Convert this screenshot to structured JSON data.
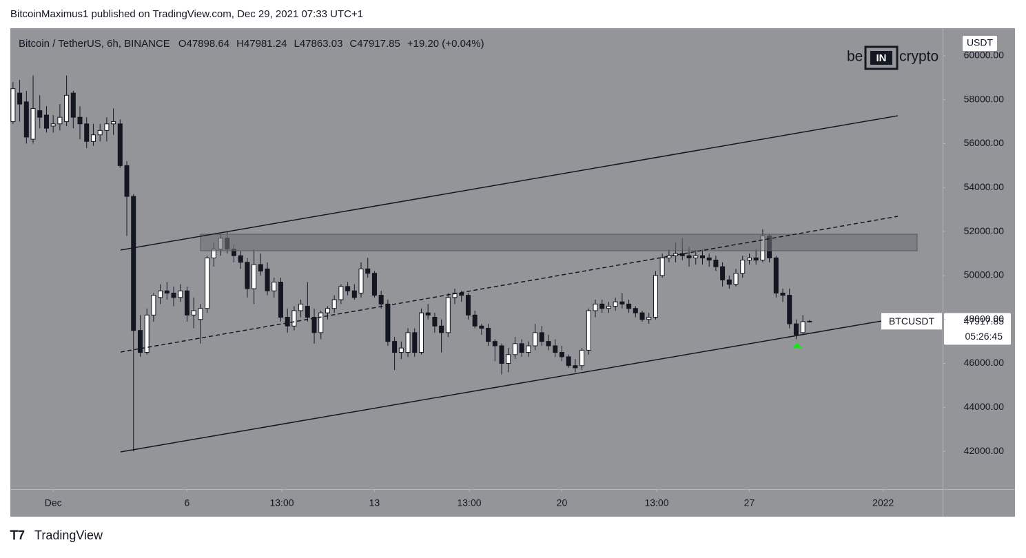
{
  "header": "BitcoinMaximus1 published on TradingView.com, Dec 29, 2021 07:33 UTC+1",
  "footer": "TradingView",
  "logo": {
    "left": "be",
    "middle": "IN",
    "right": "crypto"
  },
  "chart_data": {
    "type": "candlestick",
    "symbol_title": "Bitcoin / TetherUS, 6h, BINANCE",
    "legend_prefixes": [
      "O",
      "H",
      "L",
      "C"
    ],
    "change": "+19.20 (+0.04%)",
    "currency": "USDT",
    "ticker": "BTCUSDT",
    "countdown": "05:26:45",
    "up_color": "#ffffff",
    "down_color": "#131722",
    "wick_color": "#131722",
    "xlim": [
      -0.6,
      34.22
    ],
    "ylim": [
      40280,
      61250
    ],
    "xticks": [
      {
        "value": 1,
        "label": "Dec"
      },
      6,
      {
        "value": 9.54,
        "label": "13:00"
      },
      13,
      {
        "value": 16.54,
        "label": "13:00"
      },
      20,
      {
        "value": 23.54,
        "label": "13:00"
      },
      27,
      {
        "value": 32,
        "label": "2022"
      }
    ],
    "yticks": [
      {
        "value": 42000,
        "label": "42000.00"
      },
      {
        "value": 44000,
        "label": "44000.00"
      },
      {
        "value": 46000,
        "label": "46000.00"
      },
      {
        "value": 48000,
        "label": "48000.00"
      },
      {
        "value": 50000,
        "label": "50000.00"
      },
      {
        "value": 52000,
        "label": "52000.00"
      },
      {
        "value": 54000,
        "label": "54000.00"
      },
      {
        "value": 56000,
        "label": "56000.00"
      },
      {
        "value": 58000,
        "label": "58000.00"
      },
      {
        "value": 60000,
        "label": "60000.00"
      }
    ],
    "x": [
      -0.5,
      -0.25,
      0,
      0.25,
      0.5,
      0.75,
      1,
      1.25,
      1.5,
      1.75,
      2,
      2.25,
      2.5,
      2.75,
      3,
      3.25,
      3.5,
      3.75,
      4,
      4.25,
      4.5,
      4.75,
      5,
      5.25,
      5.5,
      5.75,
      6,
      6.25,
      6.5,
      6.75,
      7,
      7.25,
      7.5,
      7.75,
      8,
      8.25,
      8.5,
      8.75,
      9,
      9.25,
      9.5,
      9.75,
      10,
      10.25,
      10.5,
      10.75,
      11,
      11.25,
      11.5,
      11.75,
      12,
      12.25,
      12.5,
      12.75,
      13,
      13.25,
      13.5,
      13.75,
      14,
      14.25,
      14.5,
      14.75,
      15,
      15.25,
      15.5,
      15.75,
      16,
      16.25,
      16.5,
      16.75,
      17,
      17.25,
      17.5,
      17.75,
      18,
      18.25,
      18.5,
      18.75,
      19,
      19.25,
      19.5,
      19.75,
      20,
      20.25,
      20.5,
      20.75,
      21,
      21.25,
      21.5,
      21.75,
      22,
      22.25,
      22.5,
      22.75,
      23,
      23.25,
      23.5,
      23.75,
      24,
      24.25,
      24.5,
      24.75,
      25,
      25.25,
      25.5,
      25.75,
      26,
      26.25,
      26.5,
      26.75,
      27,
      27.25,
      27.5,
      27.75,
      28,
      28.25,
      28.5,
      28.75,
      29,
      29.25
    ],
    "open": [
      57000,
      58300,
      57900,
      56200,
      57500,
      57300,
      56800,
      56900,
      57000,
      58300,
      57200,
      56900,
      56100,
      56400,
      56600,
      56900,
      56900,
      55000,
      53600,
      47500,
      46500,
      48200,
      49000,
      49300,
      49200,
      49000,
      49300,
      48200,
      48000,
      48500,
      50800,
      51200,
      51700,
      51200,
      50900,
      50600,
      49400,
      50500,
      50300,
      49300,
      49700,
      48100,
      47700,
      48400,
      48600,
      48100,
      47400,
      48300,
      48500,
      48900,
      49500,
      49300,
      49200,
      50300,
      50100,
      49100,
      48700,
      47000,
      46500,
      46500,
      47400,
      46500,
      48300,
      48100,
      47700,
      47400,
      49000,
      49200,
      49100,
      48200,
      47700,
      47600,
      47000,
      46800,
      46000,
      46400,
      46900,
      46500,
      46800,
      47400,
      47000,
      46800,
      46500,
      46300,
      45900,
      45900,
      46600,
      48400,
      48700,
      48500,
      48600,
      48800,
      48700,
      48500,
      48300,
      48000,
      48100,
      50000,
      50800,
      50900,
      51000,
      50900,
      50800,
      50900,
      50800,
      50700,
      50400,
      49800,
      49600,
      50100,
      50700,
      50800,
      50700,
      51800,
      50800,
      49200,
      49100,
      47800,
      47400,
      47898.64
    ],
    "high": [
      58800,
      58900,
      58400,
      59100,
      58200,
      57700,
      57300,
      57800,
      59100,
      58400,
      57700,
      57200,
      56900,
      56900,
      57200,
      57600,
      57100,
      55200,
      53700,
      48200,
      48500,
      49200,
      49600,
      49700,
      49500,
      49600,
      49500,
      49000,
      48700,
      50900,
      51500,
      51900,
      52000,
      51400,
      51100,
      50800,
      51200,
      51000,
      50600,
      49900,
      49900,
      48500,
      48600,
      48900,
      49700,
      48500,
      48400,
      48600,
      49100,
      49600,
      49700,
      49600,
      50600,
      50800,
      50200,
      49300,
      48900,
      47200,
      47000,
      47600,
      47600,
      48500,
      48700,
      48300,
      48000,
      49200,
      49400,
      49300,
      49200,
      48400,
      47800,
      47800,
      47100,
      46900,
      46700,
      47200,
      47100,
      47000,
      47800,
      47700,
      47300,
      47100,
      46800,
      46400,
      46200,
      46700,
      48500,
      48900,
      48900,
      48800,
      49000,
      49200,
      48900,
      48600,
      48400,
      48300,
      50200,
      51000,
      51200,
      51500,
      51700,
      51300,
      51100,
      51200,
      51000,
      50900,
      50600,
      50000,
      50300,
      50900,
      51000,
      51200,
      52100,
      51900,
      50900,
      49400,
      49400,
      48000,
      48200,
      47981.24
    ],
    "low": [
      56900,
      57000,
      56000,
      56000,
      56700,
      56500,
      56500,
      56600,
      56800,
      56700,
      56200,
      55800,
      55900,
      56100,
      56100,
      56400,
      54900,
      51800,
      42000,
      46300,
      46400,
      47900,
      48700,
      48900,
      48600,
      48800,
      47900,
      47600,
      46900,
      48300,
      50400,
      50900,
      51000,
      50600,
      50300,
      49000,
      48700,
      50000,
      49100,
      49000,
      47900,
      47400,
      47500,
      48100,
      47900,
      46900,
      47100,
      48000,
      48300,
      48700,
      49100,
      48900,
      49000,
      49900,
      49000,
      48500,
      46800,
      45700,
      46200,
      46300,
      46300,
      46400,
      48000,
      47400,
      46500,
      47200,
      48700,
      48800,
      48000,
      47600,
      47300,
      46800,
      46100,
      45500,
      45600,
      46200,
      46300,
      46300,
      46600,
      46800,
      46600,
      46300,
      46100,
      45800,
      45600,
      45700,
      46400,
      48100,
      48300,
      48300,
      48400,
      48500,
      48300,
      48100,
      47900,
      47800,
      48000,
      49900,
      50600,
      50600,
      50700,
      50400,
      50500,
      50500,
      50400,
      50200,
      49500,
      49400,
      49500,
      49900,
      50500,
      50500,
      50600,
      50600,
      49000,
      48800,
      47600,
      47100,
      47300,
      47863.03
    ],
    "close": [
      58500,
      57800,
      56300,
      57600,
      57200,
      56700,
      56900,
      57200,
      58200,
      57200,
      56900,
      56100,
      56400,
      56600,
      56900,
      57000,
      55000,
      53600,
      47500,
      46500,
      48200,
      49100,
      49300,
      49200,
      49000,
      49300,
      48200,
      48400,
      48500,
      50800,
      51200,
      51700,
      51200,
      50900,
      50600,
      49400,
      50500,
      50200,
      49300,
      49700,
      48100,
      47700,
      48400,
      48700,
      48100,
      47400,
      48300,
      48500,
      48900,
      49500,
      49300,
      49000,
      50300,
      50100,
      49100,
      48700,
      47000,
      46500,
      46700,
      47400,
      46500,
      48300,
      48200,
      47700,
      47400,
      49000,
      49200,
      49100,
      48200,
      47700,
      47600,
      47000,
      46800,
      46000,
      46400,
      46900,
      46500,
      46800,
      47400,
      47000,
      46800,
      46500,
      46300,
      45900,
      45800,
      46600,
      48400,
      48700,
      48500,
      48600,
      48800,
      48700,
      48500,
      48300,
      48000,
      48100,
      50000,
      50800,
      50900,
      51000,
      50900,
      50800,
      50900,
      50800,
      50700,
      50400,
      49800,
      49600,
      50100,
      50700,
      50800,
      50700,
      51800,
      50800,
      49200,
      49100,
      47800,
      47300,
      47900,
      47917.85
    ]
  }
}
